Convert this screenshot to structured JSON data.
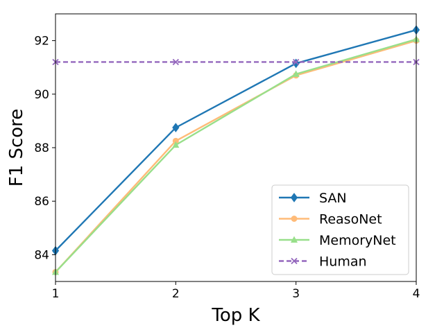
{
  "chart_data": {
    "type": "line",
    "x": [
      1,
      2,
      3,
      4
    ],
    "xticks": [
      "1",
      "2",
      "3",
      "4"
    ],
    "yticks": [
      "84",
      "86",
      "88",
      "90",
      "92"
    ],
    "xlabel": "Top K",
    "ylabel": "F1 Score",
    "xlim": [
      1,
      4
    ],
    "ylim": [
      83.0,
      93.0
    ],
    "grid": false,
    "legend_position": "bottom-right",
    "series": [
      {
        "name": "SAN",
        "values": [
          84.15,
          88.75,
          91.15,
          92.4
        ],
        "color": "#1f77b4",
        "marker": "diamond",
        "dashed": false
      },
      {
        "name": "ReasoNet",
        "values": [
          83.35,
          88.25,
          90.7,
          92.0
        ],
        "color": "#ffbb78",
        "marker": "circle",
        "dashed": false
      },
      {
        "name": "MemoryNet",
        "values": [
          83.35,
          88.1,
          90.75,
          92.05
        ],
        "color": "#98df8a",
        "marker": "triangle",
        "dashed": false
      },
      {
        "name": "Human",
        "values": [
          91.2,
          91.2,
          91.2,
          91.2
        ],
        "color": "#9467bd",
        "marker": "x",
        "dashed": true
      }
    ]
  }
}
